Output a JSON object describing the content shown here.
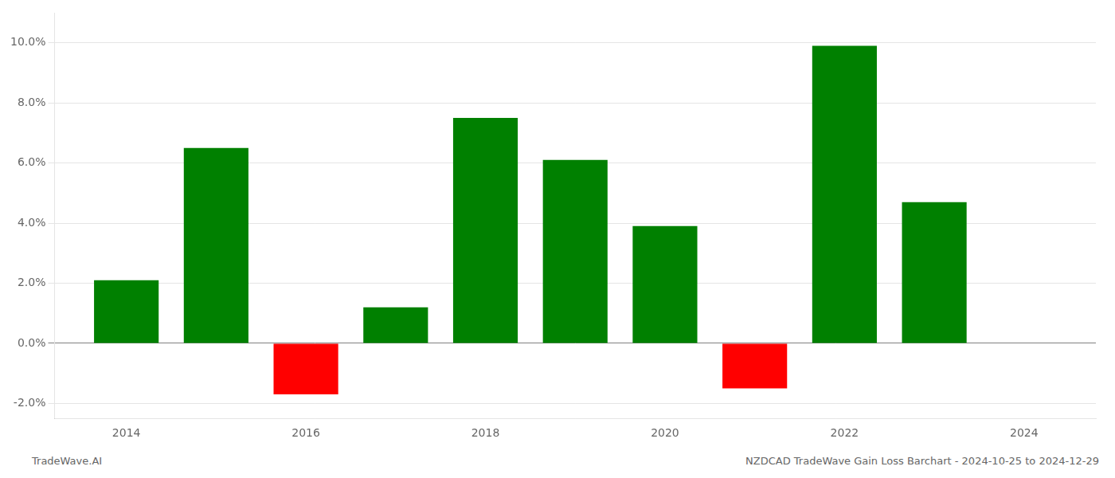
{
  "chart_data": {
    "type": "bar",
    "x": [
      2014,
      2015,
      2016,
      2017,
      2018,
      2019,
      2020,
      2021,
      2022,
      2023
    ],
    "values": [
      0.021,
      0.065,
      -0.017,
      0.012,
      0.075,
      0.061,
      0.039,
      -0.015,
      0.099,
      0.047
    ],
    "colors": [
      "#008000",
      "#008000",
      "#ff0000",
      "#008000",
      "#008000",
      "#008000",
      "#008000",
      "#ff0000",
      "#008000",
      "#008000"
    ],
    "xlim": [
      2013.2,
      2024.8
    ],
    "xticks": [
      2014,
      2016,
      2018,
      2020,
      2022,
      2024
    ],
    "ylim": [
      -0.025,
      0.11
    ],
    "yticks": [
      {
        "value": -0.02,
        "label": "-2.0%"
      },
      {
        "value": 0,
        "label": "0.0%"
      },
      {
        "value": 0.02,
        "label": "2.0%"
      },
      {
        "value": 0.04,
        "label": "4.0%"
      },
      {
        "value": 0.06,
        "label": "6.0%"
      },
      {
        "value": 0.08,
        "label": "8.0%"
      },
      {
        "value": 0.1,
        "label": "10.0%"
      }
    ],
    "grid": true,
    "annotations": [
      "TradeWave.AI",
      "NZDCAD TradeWave Gain Loss Barchart - 2024-10-25 to 2024-12-29"
    ]
  }
}
